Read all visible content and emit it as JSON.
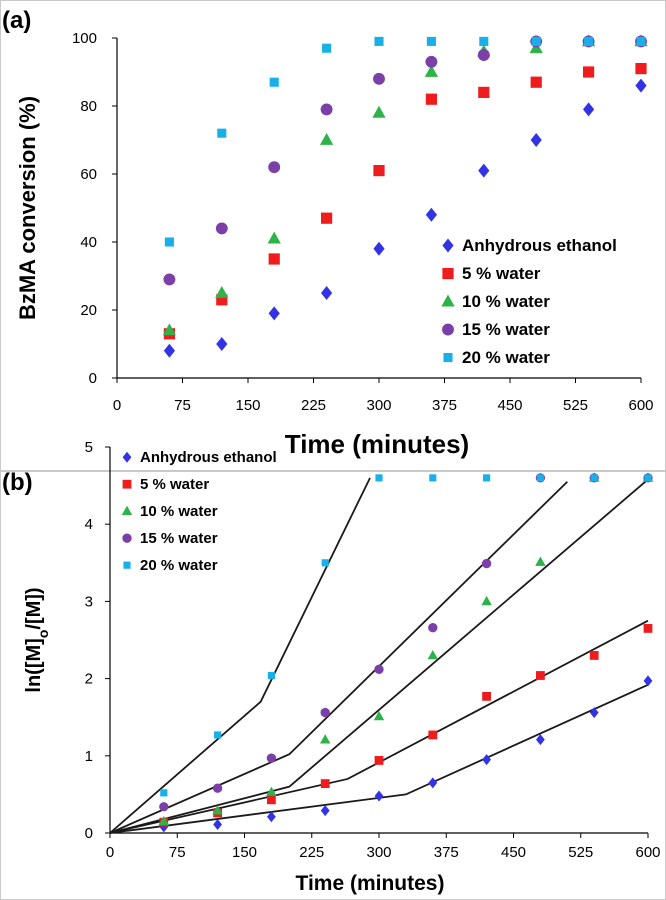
{
  "chart_data": [
    {
      "panel_label": "(a)",
      "type": "scatter",
      "xlabel": "Time (minutes)",
      "ylabel": "BzMA conversion (%)",
      "xlim": [
        0,
        600
      ],
      "ylim": [
        0,
        100
      ],
      "xticks": [
        "0",
        "75",
        "150",
        "225",
        "300",
        "375",
        "450",
        "525",
        "600"
      ],
      "yticks": [
        "0",
        "20",
        "40",
        "60",
        "80",
        "100"
      ],
      "grid": false,
      "legend_position": "bottom-right",
      "x": [
        60,
        120,
        180,
        240,
        300,
        360,
        420,
        480,
        540,
        600
      ],
      "series": [
        {
          "name": "Anhydrous ethanol",
          "marker": "diamond",
          "color": "#3333e6",
          "values": [
            8,
            10,
            19,
            25,
            38,
            48,
            61,
            70,
            79,
            86
          ]
        },
        {
          "name": "5 % water",
          "marker": "square",
          "color": "#ee1c1c",
          "values": [
            13,
            23,
            35,
            47,
            61,
            82,
            84,
            87,
            90,
            91
          ]
        },
        {
          "name": "10 % water",
          "marker": "triangle",
          "color": "#2eb24a",
          "values": [
            14,
            25,
            41,
            70,
            78,
            90,
            96,
            97,
            99,
            99
          ]
        },
        {
          "name": "15 % water",
          "marker": "circle",
          "color": "#7b3fa8",
          "values": [
            29,
            44,
            62,
            79,
            88,
            93,
            95,
            99,
            99,
            99
          ]
        },
        {
          "name": "20 % water",
          "marker": "square-small",
          "color": "#19b0ea",
          "values": [
            40,
            72,
            87,
            97,
            99,
            99,
            99,
            99,
            99,
            99
          ]
        }
      ]
    },
    {
      "panel_label": "(b)",
      "type": "scatter",
      "xlabel": "Time (minutes)",
      "ylabel": "ln([M]o/[M])",
      "ylabel_parts": [
        "ln([M]",
        "o",
        "/[M])"
      ],
      "xlim": [
        0,
        600
      ],
      "ylim": [
        0,
        5
      ],
      "xticks": [
        "0",
        "75",
        "150",
        "225",
        "300",
        "375",
        "450",
        "525",
        "600"
      ],
      "yticks": [
        "0",
        "1",
        "2",
        "3",
        "4",
        "5"
      ],
      "grid": false,
      "legend_position": "top-left",
      "x": [
        60,
        120,
        180,
        240,
        300,
        360,
        420,
        480,
        540,
        600
      ],
      "series": [
        {
          "name": "Anhydrous ethanol",
          "marker": "diamond",
          "color": "#3333e6",
          "values": [
            0.08,
            0.11,
            0.21,
            0.29,
            0.48,
            0.65,
            0.95,
            1.21,
            1.56,
            1.97
          ],
          "fit": [
            [
              0,
              0
            ],
            [
              330,
              0.5
            ],
            [
              600,
              1.92
            ]
          ]
        },
        {
          "name": "5 % water",
          "marker": "square",
          "color": "#ee1c1c",
          "values": [
            0.14,
            0.26,
            0.43,
            0.64,
            0.94,
            1.27,
            1.77,
            2.04,
            2.3,
            2.65
          ],
          "fit": [
            [
              0,
              0
            ],
            [
              265,
              0.7
            ],
            [
              600,
              2.75
            ]
          ]
        },
        {
          "name": "10 % water",
          "marker": "triangle",
          "color": "#2eb24a",
          "values": [
            0.15,
            0.29,
            0.53,
            1.21,
            1.51,
            2.3,
            3.0,
            3.51,
            4.6,
            4.6
          ],
          "fit": [
            [
              0,
              0
            ],
            [
              200,
              0.6
            ],
            [
              600,
              4.58
            ]
          ]
        },
        {
          "name": "15 % water",
          "marker": "circle",
          "color": "#7b3fa8",
          "values": [
            0.34,
            0.58,
            0.97,
            1.56,
            2.12,
            2.66,
            3.49,
            4.6,
            4.6,
            4.6
          ],
          "fit": [
            [
              0,
              0
            ],
            [
              200,
              1.02
            ],
            [
              510,
              4.55
            ]
          ]
        },
        {
          "name": "20 % water",
          "marker": "square-small",
          "color": "#19b0ea",
          "values": [
            0.52,
            1.27,
            2.04,
            3.5,
            4.6,
            4.6,
            4.6,
            4.6,
            4.6,
            4.6
          ],
          "fit": [
            [
              0,
              0
            ],
            [
              168,
              1.7
            ],
            [
              290,
              4.6
            ]
          ]
        }
      ]
    }
  ]
}
